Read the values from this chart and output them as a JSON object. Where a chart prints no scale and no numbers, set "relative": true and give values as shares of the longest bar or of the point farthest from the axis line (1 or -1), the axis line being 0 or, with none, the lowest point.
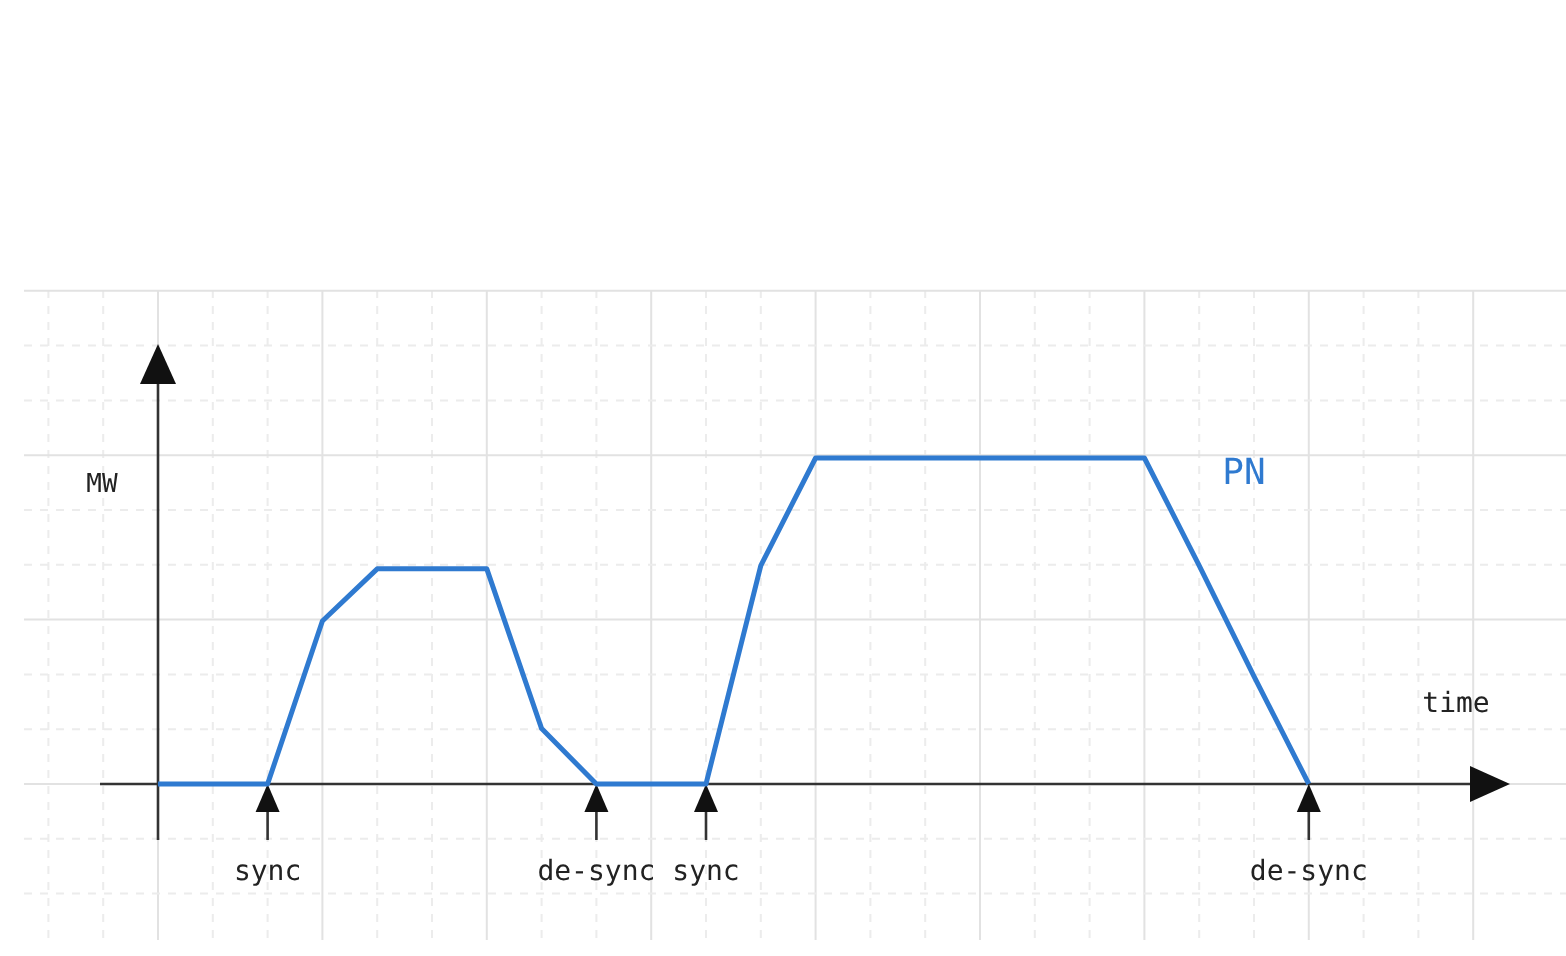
{
  "chart_data": {
    "type": "line",
    "relative": true,
    "ylabel": "MW",
    "xlabel": "time",
    "categories": [
      null,
      null,
      "sync",
      null,
      null,
      null,
      null,
      null,
      "de-sync",
      null,
      "sync",
      null,
      null,
      null,
      null,
      null,
      null,
      null,
      null,
      null,
      null,
      "de-sync"
    ],
    "series": [
      {
        "color": "#2f7ad0",
        "values": [
          0,
          0,
          0,
          0.5,
          0.66,
          0.66,
          0.66,
          0.17,
          0,
          0,
          0,
          0.67,
          1,
          1,
          1,
          1,
          1,
          1,
          1,
          0.67,
          0.33,
          0
        ]
      }
    ],
    "annotations": [
      "PN"
    ],
    "marker": "none",
    "line_style": "solid",
    "grid": true
  }
}
